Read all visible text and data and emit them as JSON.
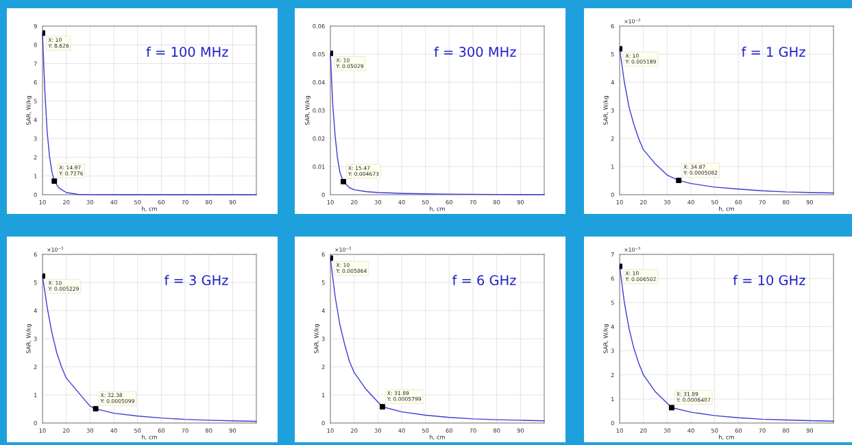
{
  "chart_data": [
    {
      "type": "line",
      "xlabel": "h, cm",
      "ylabel": "SAR, W/kg",
      "xlim": [
        10,
        100
      ],
      "xticks": [
        10,
        20,
        30,
        40,
        50,
        60,
        70,
        80,
        90
      ],
      "ylim": [
        0,
        9
      ],
      "yticks": [
        0,
        1,
        2,
        3,
        4,
        5,
        6,
        7,
        8,
        9
      ],
      "grid": true,
      "legend": false,
      "series": [
        {
          "color": "#3b3bd6",
          "marker": "none",
          "line_style": "solid",
          "x": [
            10,
            11,
            12,
            13,
            14,
            14.97,
            17,
            20,
            25,
            30,
            40,
            60,
            100
          ],
          "values": [
            8.626,
            5.5,
            3.3,
            2.0,
            1.2,
            0.7276,
            0.35,
            0.12,
            0.02,
            0.005,
            0.002,
            0.001,
            0.0005
          ]
        },
        {
          "type": "scatter",
          "color": "#000000",
          "marker": "square",
          "x": [
            10,
            14.97
          ],
          "values": [
            8.626,
            0.7276
          ]
        }
      ],
      "annotations": [
        {
          "text": "X: 10\nY: 8.626",
          "x": 10,
          "y": 8.626
        },
        {
          "text": "X: 14.97\nY: 0.7276",
          "x": 14.97,
          "y": 0.7276
        },
        "f = 100 MHz"
      ]
    },
    {
      "type": "line",
      "xlabel": "h, cm",
      "ylabel": "SAR, W/kg",
      "xlim": [
        10,
        100
      ],
      "xticks": [
        10,
        20,
        30,
        40,
        50,
        60,
        70,
        80,
        90
      ],
      "ylim": [
        0,
        0.06
      ],
      "yticks": [
        0,
        0.01,
        0.02,
        0.03,
        0.04,
        0.05,
        0.06
      ],
      "grid": true,
      "legend": false,
      "series": [
        {
          "color": "#3b3bd6",
          "marker": "none",
          "line_style": "solid",
          "x": [
            10,
            11,
            12,
            13,
            14,
            15.47,
            18,
            20,
            25,
            30,
            40,
            50,
            60,
            80,
            100
          ],
          "values": [
            0.05029,
            0.032,
            0.021,
            0.013,
            0.008,
            0.004673,
            0.0025,
            0.0018,
            0.0011,
            0.0008,
            0.0005,
            0.0003,
            0.0002,
            0.0001,
            5e-05
          ]
        },
        {
          "type": "scatter",
          "color": "#000000",
          "marker": "square",
          "x": [
            10,
            15.47
          ],
          "values": [
            0.05029,
            0.004673
          ]
        }
      ],
      "annotations": [
        {
          "text": "X: 10\nY: 0.05029",
          "x": 10,
          "y": 0.05029
        },
        {
          "text": "X: 15.47\nY: 0.004673",
          "x": 15.47,
          "y": 0.004673
        },
        "f = 300 MHz"
      ]
    },
    {
      "type": "line",
      "xlabel": "h, cm",
      "ylabel": "SAR, W/kg",
      "xlim": [
        10,
        100
      ],
      "xticks": [
        10,
        20,
        30,
        40,
        50,
        60,
        70,
        80,
        90
      ],
      "ylim": [
        0,
        6
      ],
      "yticks": [
        0,
        1,
        2,
        3,
        4,
        5,
        6
      ],
      "grid": true,
      "legend": false,
      "series": [
        {
          "color": "#3b3bd6",
          "marker": "none",
          "line_style": "solid",
          "x": [
            10,
            12,
            14,
            16,
            18,
            20,
            25,
            30,
            34.87,
            40,
            50,
            60,
            70,
            80,
            90,
            100
          ],
          "values": [
            5.189,
            4.0,
            3.1,
            2.5,
            2.0,
            1.6,
            1.1,
            0.7,
            0.5082,
            0.4,
            0.27,
            0.2,
            0.14,
            0.1,
            0.08,
            0.06
          ]
        },
        {
          "type": "scatter",
          "color": "#000000",
          "marker": "square",
          "x": [
            10,
            34.87
          ],
          "values": [
            5.189,
            0.5082
          ]
        }
      ],
      "annotations": [
        {
          "text": "X: 10\nY: 0.005189",
          "x": 10,
          "y": 5.189
        },
        {
          "text": "X: 34.87\nY: 0.0005082",
          "x": 34.87,
          "y": 0.5082
        },
        "×10$^{−3}$",
        "f = 1 GHz"
      ]
    },
    {
      "type": "line",
      "xlabel": "h, cm",
      "ylabel": "SAR, W/kg",
      "xlim": [
        10,
        100
      ],
      "xticks": [
        10,
        20,
        30,
        40,
        50,
        60,
        70,
        80,
        90
      ],
      "ylim": [
        0,
        6
      ],
      "yticks": [
        0,
        1,
        2,
        3,
        4,
        5,
        6
      ],
      "grid": true,
      "legend": false,
      "series": [
        {
          "color": "#3b3bd6",
          "marker": "none",
          "line_style": "solid",
          "x": [
            10,
            12,
            14,
            16,
            18,
            20,
            25,
            30,
            32.38,
            40,
            50,
            60,
            70,
            80,
            90,
            100
          ],
          "values": [
            5.229,
            4.1,
            3.2,
            2.5,
            2.0,
            1.6,
            1.1,
            0.6,
            0.5099,
            0.35,
            0.25,
            0.18,
            0.13,
            0.1,
            0.08,
            0.06
          ]
        },
        {
          "type": "scatter",
          "color": "#000000",
          "marker": "square",
          "x": [
            10,
            32.38
          ],
          "values": [
            5.229,
            0.5099
          ]
        }
      ],
      "annotations": [
        {
          "text": "X: 10\nY: 0.005229",
          "x": 10,
          "y": 5.229
        },
        {
          "text": "X: 32.38\nY: 0.0005099",
          "x": 32.38,
          "y": 0.5099
        },
        "×10$^{−3}$",
        "f = 3 GHz"
      ]
    },
    {
      "type": "line",
      "xlabel": "h, cm",
      "ylabel": "SAR, W/kg",
      "xlim": [
        10,
        100
      ],
      "xticks": [
        10,
        20,
        30,
        40,
        50,
        60,
        70,
        80,
        90
      ],
      "ylim": [
        0,
        6
      ],
      "yticks": [
        0,
        1,
        2,
        3,
        4,
        5,
        6
      ],
      "grid": true,
      "legend": false,
      "series": [
        {
          "color": "#3b3bd6",
          "marker": "none",
          "line_style": "solid",
          "x": [
            10,
            12,
            14,
            16,
            18,
            20,
            25,
            31.89,
            40,
            50,
            60,
            70,
            80,
            90,
            100
          ],
          "values": [
            5.864,
            4.5,
            3.5,
            2.8,
            2.2,
            1.8,
            1.2,
            0.5799,
            0.4,
            0.28,
            0.2,
            0.15,
            0.12,
            0.1,
            0.08
          ]
        },
        {
          "type": "scatter",
          "color": "#000000",
          "marker": "square",
          "x": [
            10,
            31.89
          ],
          "values": [
            5.864,
            0.5799
          ]
        }
      ],
      "annotations": [
        {
          "text": "X: 10\nY: 0.005864",
          "x": 10,
          "y": 5.864
        },
        {
          "text": "X: 31.89\nY: 0.0005799",
          "x": 31.89,
          "y": 0.5799
        },
        "×10$^{−3}$",
        "f = 6 GHz"
      ]
    },
    {
      "type": "line",
      "xlabel": "h, cm",
      "ylabel": "SAR, W/kg",
      "xlim": [
        10,
        100
      ],
      "xticks": [
        10,
        20,
        30,
        40,
        50,
        60,
        70,
        80,
        90
      ],
      "ylim": [
        0,
        7
      ],
      "yticks": [
        0,
        1,
        2,
        3,
        4,
        5,
        6,
        7
      ],
      "grid": true,
      "legend": false,
      "series": [
        {
          "color": "#3b3bd6",
          "marker": "none",
          "line_style": "solid",
          "x": [
            10,
            12,
            14,
            16,
            18,
            20,
            25,
            31.89,
            40,
            50,
            60,
            70,
            80,
            90,
            100
          ],
          "values": [
            6.502,
            5.0,
            3.9,
            3.1,
            2.5,
            2.0,
            1.3,
            0.6407,
            0.45,
            0.31,
            0.22,
            0.16,
            0.13,
            0.1,
            0.08
          ]
        },
        {
          "type": "scatter",
          "color": "#000000",
          "marker": "square",
          "x": [
            10,
            31.89
          ],
          "values": [
            6.502,
            0.6407
          ]
        }
      ],
      "annotations": [
        {
          "text": "X: 10\nY: 0.006502",
          "x": 10,
          "y": 6.502
        },
        {
          "text": "X: 31.89\nY: 0.0006407",
          "x": 31.89,
          "y": 0.6407
        },
        "×10$^{−3}$",
        "f = 10 GHz"
      ]
    }
  ]
}
